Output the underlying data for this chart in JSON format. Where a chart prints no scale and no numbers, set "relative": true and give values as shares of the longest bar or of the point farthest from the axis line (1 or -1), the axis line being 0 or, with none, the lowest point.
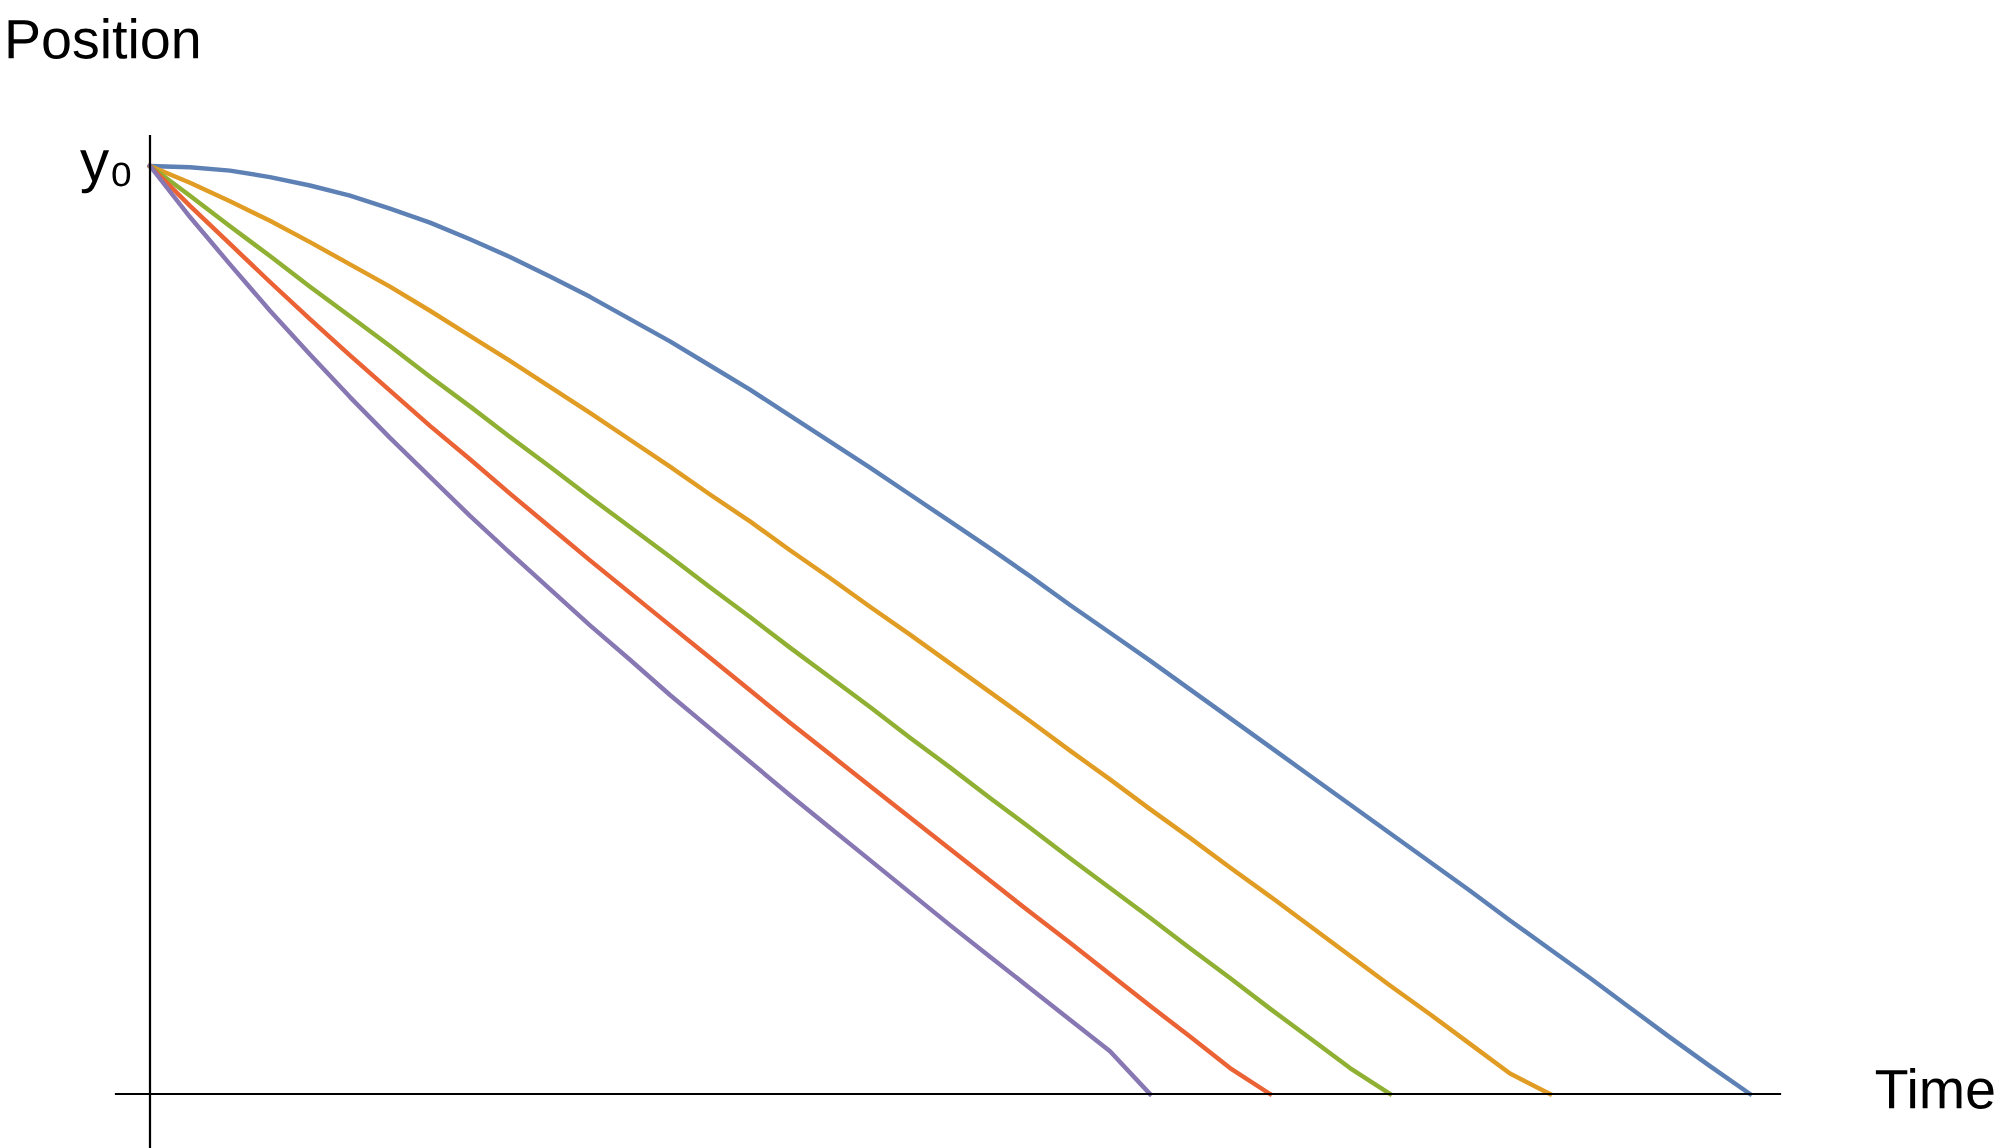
{
  "chart_data": {
    "type": "line",
    "relative": true,
    "xlabel": "Time",
    "ylabel": "Position",
    "marker": "none",
    "line_style": "solid",
    "annotations": [
      "y₀"
    ],
    "categories": [
      null,
      null,
      null,
      null,
      null,
      null,
      null,
      null,
      null,
      null,
      null,
      null,
      null,
      null,
      null,
      null,
      null,
      null,
      null,
      null,
      null,
      null,
      null,
      null,
      null,
      null,
      null,
      null,
      null,
      null,
      null,
      null,
      null,
      null,
      null,
      null,
      null,
      null,
      null,
      null,
      null
    ],
    "series": [
      {
        "color": "#5e81b5",
        "values": [
          1,
          0.9987,
          0.995,
          0.988,
          0.979,
          0.968,
          0.954,
          0.939,
          0.921,
          0.902,
          0.881,
          0.859,
          0.835,
          0.811,
          0.785,
          0.759,
          0.731,
          0.703,
          0.675,
          0.646,
          0.617,
          0.588,
          0.558,
          0.527,
          0.497,
          0.467,
          0.436,
          0.405,
          0.374,
          0.343,
          0.312,
          0.281,
          0.25,
          0.219,
          0.187,
          0.156,
          0.125,
          0.093,
          0.061,
          0.03,
          0
        ]
      },
      {
        "color": "#e19c24",
        "values": [
          1,
          0.982,
          0.962,
          0.941,
          0.918,
          0.894,
          0.87,
          0.844,
          0.817,
          0.79,
          0.762,
          0.734,
          0.705,
          0.676,
          0.646,
          0.617,
          0.586,
          0.556,
          0.525,
          0.495,
          0.464,
          0.433,
          0.402,
          0.37,
          0.339,
          0.307,
          0.276,
          0.244,
          0.213,
          0.181,
          0.149,
          0.117,
          0.086,
          0.054,
          0.022,
          0,
          null,
          null,
          null,
          null,
          null
        ]
      },
      {
        "color": "#8fb032",
        "values": [
          1,
          0.968,
          0.935,
          0.903,
          0.87,
          0.838,
          0.806,
          0.773,
          0.741,
          0.708,
          0.676,
          0.643,
          0.611,
          0.579,
          0.546,
          0.514,
          0.481,
          0.449,
          0.417,
          0.384,
          0.352,
          0.319,
          0.287,
          0.254,
          0.222,
          0.19,
          0.157,
          0.125,
          0.092,
          0.06,
          0.028,
          0,
          null,
          null,
          null,
          null,
          null,
          null,
          null,
          null,
          null
        ]
      },
      {
        "color": "#eb6235",
        "values": [
          1,
          0.957,
          0.916,
          0.875,
          0.835,
          0.796,
          0.758,
          0.72,
          0.684,
          0.647,
          0.611,
          0.575,
          0.54,
          0.505,
          0.47,
          0.435,
          0.4,
          0.366,
          0.332,
          0.298,
          0.264,
          0.23,
          0.196,
          0.163,
          0.129,
          0.095,
          0.062,
          0.028,
          0,
          null,
          null,
          null,
          null,
          null,
          null,
          null,
          null,
          null,
          null,
          null,
          null
        ]
      },
      {
        "color": "#8778b3",
        "values": [
          1,
          0.945,
          0.894,
          0.844,
          0.797,
          0.751,
          0.707,
          0.665,
          0.623,
          0.583,
          0.544,
          0.505,
          0.468,
          0.43,
          0.394,
          0.358,
          0.322,
          0.287,
          0.252,
          0.217,
          0.182,
          0.148,
          0.114,
          0.08,
          0.046,
          0,
          null,
          null,
          null,
          null,
          null,
          null,
          null,
          null,
          null,
          null,
          null,
          null,
          null,
          null,
          null
        ]
      }
    ]
  }
}
